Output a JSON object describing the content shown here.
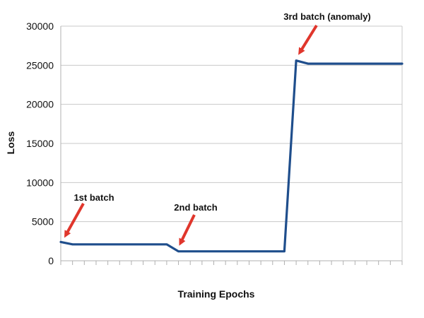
{
  "chart_data": {
    "type": "line",
    "title": "",
    "xlabel": "Training Epochs",
    "ylabel": "Loss",
    "ylim": [
      0,
      30000
    ],
    "y_ticks": [
      0,
      5000,
      10000,
      15000,
      20000,
      25000,
      30000
    ],
    "y_tick_labels": [
      "0",
      "5000",
      "10000",
      "15000",
      "20000",
      "25000",
      "30000"
    ],
    "xlim": [
      0,
      29
    ],
    "x_ticks": [
      0,
      1,
      2,
      3,
      4,
      5,
      6,
      7,
      8,
      9,
      10,
      11,
      12,
      13,
      14,
      15,
      16,
      17,
      18,
      19,
      20,
      21,
      22,
      23,
      24,
      25,
      26,
      27,
      28,
      29
    ],
    "grid": {
      "horizontal": true,
      "vertical": false
    },
    "legend": "none",
    "series": [
      {
        "x": [
          0,
          1,
          9,
          10,
          19,
          20,
          21,
          29
        ],
        "values": [
          2400,
          2100,
          2100,
          1200,
          1200,
          25600,
          25200,
          25200
        ],
        "color": "#1f4e8c"
      }
    ],
    "annotations": [
      {
        "text": "1st batch",
        "x": 0,
        "y": 2400,
        "color": "#e0362c"
      },
      {
        "text": "2nd batch",
        "x": 10,
        "y": 1200,
        "color": "#e0362c"
      },
      {
        "text": "3rd batch (anomaly)",
        "x": 20,
        "y": 25600,
        "color": "#e0362c"
      }
    ],
    "colors": {
      "line": "#1f4e8c",
      "arrow": "#e0362c",
      "grid": "#c8c8c8",
      "axis": "#b0b0b0"
    }
  }
}
